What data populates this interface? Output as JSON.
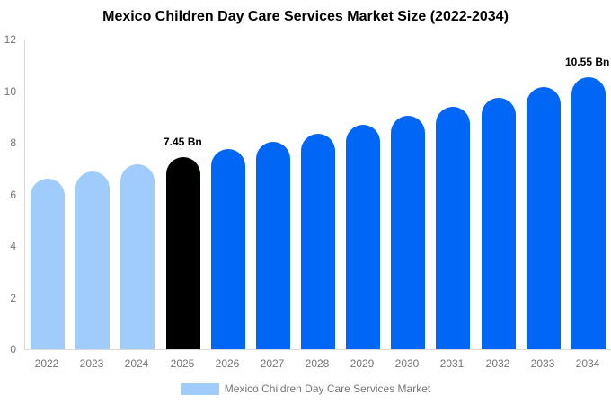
{
  "chart_data": {
    "type": "bar",
    "title": "Mexico Children Day Care Services Market Size (2022-2034)",
    "categories": [
      "2022",
      "2023",
      "2024",
      "2025",
      "2026",
      "2027",
      "2028",
      "2029",
      "2030",
      "2031",
      "2032",
      "2033",
      "2034"
    ],
    "values": [
      6.6,
      6.9,
      7.15,
      7.45,
      7.75,
      8.05,
      8.35,
      8.7,
      9.05,
      9.4,
      9.75,
      10.15,
      10.55
    ],
    "bar_colors": [
      "#9fccfa",
      "#9fccfa",
      "#9fccfa",
      "#000000",
      "#0066f5",
      "#0066f5",
      "#0066f5",
      "#0066f5",
      "#0066f5",
      "#0066f5",
      "#0066f5",
      "#0066f5",
      "#0066f5"
    ],
    "annotations": [
      {
        "category": "2025",
        "text": "7.45 Bn"
      },
      {
        "category": "2034",
        "text": "10.55 Bn"
      }
    ],
    "xlabel": "",
    "ylabel": "",
    "ylim": [
      0,
      12
    ],
    "y_ticks": [
      0,
      2,
      4,
      6,
      8,
      10,
      12
    ],
    "grid": false,
    "axis_color": "#d9d9d9",
    "tick_label_color": "#757575",
    "legend": {
      "position": "bottom",
      "items": [
        {
          "label": "Mexico Children Day Care Services Market",
          "color": "#9fccfa"
        }
      ]
    }
  }
}
